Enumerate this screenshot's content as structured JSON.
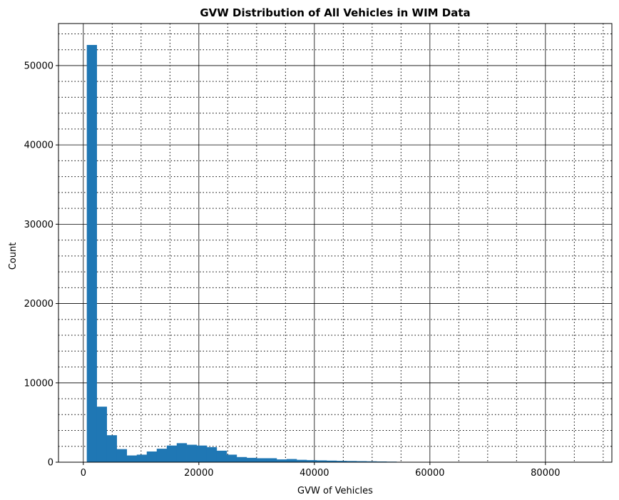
{
  "chart_data": {
    "type": "bar",
    "title": "GVW Distribution of All Vehicles in WIM Data",
    "xlabel": "GVW of Vehicles",
    "ylabel": "Count",
    "xlim": [
      -4300,
      91500
    ],
    "ylim": [
      0,
      55300
    ],
    "xticks": [
      0,
      20000,
      40000,
      60000,
      80000
    ],
    "yticks": [
      0,
      10000,
      20000,
      30000,
      40000,
      50000
    ],
    "grid": {
      "major": "solid",
      "minor": "dotted",
      "x_minor_step": 5000,
      "y_minor_step": 2000
    },
    "color": "#1f77b4",
    "bins": {
      "x_min": 600,
      "bin_width": 1730,
      "counts": [
        52600,
        7000,
        3400,
        1650,
        850,
        950,
        1350,
        1700,
        2100,
        2400,
        2200,
        2100,
        1900,
        1450,
        950,
        650,
        550,
        500,
        500,
        350,
        400,
        300,
        260,
        230,
        200,
        170,
        150,
        130,
        110,
        90,
        70,
        40,
        25,
        20,
        15,
        10,
        8,
        5,
        5,
        4,
        3,
        3,
        2,
        2,
        2,
        1,
        1,
        1,
        1,
        1
      ]
    }
  }
}
